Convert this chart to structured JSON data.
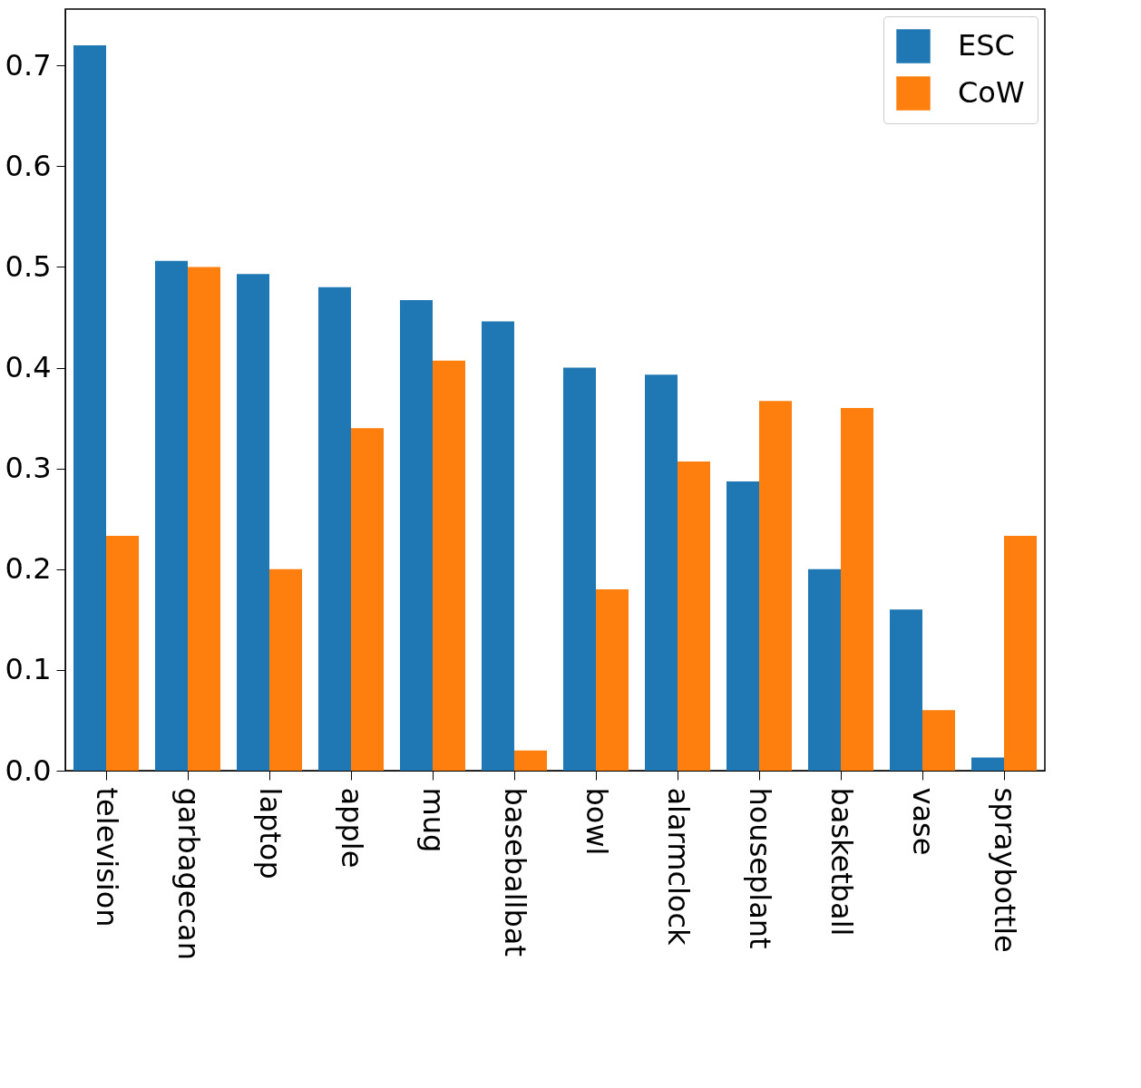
{
  "chart_data": {
    "type": "bar",
    "categories": [
      "television",
      "garbagecan",
      "laptop",
      "apple",
      "mug",
      "baseballbat",
      "bowl",
      "alarmclock",
      "houseplant",
      "basketball",
      "vase",
      "spraybottle"
    ],
    "series": [
      {
        "name": "ESC",
        "color": "#1f77b4",
        "values": [
          0.72,
          0.506,
          0.493,
          0.48,
          0.467,
          0.446,
          0.4,
          0.393,
          0.287,
          0.2,
          0.16,
          0.013
        ]
      },
      {
        "name": "CoW",
        "color": "#ff7f0e",
        "values": [
          0.233,
          0.5,
          0.2,
          0.34,
          0.407,
          0.02,
          0.18,
          0.307,
          0.367,
          0.36,
          0.06,
          0.233
        ]
      }
    ],
    "ylim": [
      0,
      0.756
    ],
    "yticks": [
      {
        "value": 0,
        "label": "0.0"
      },
      0.1,
      0.2,
      0.3,
      0.4,
      0.5,
      0.6,
      0.7
    ],
    "grid": false,
    "legend": "top right"
  }
}
